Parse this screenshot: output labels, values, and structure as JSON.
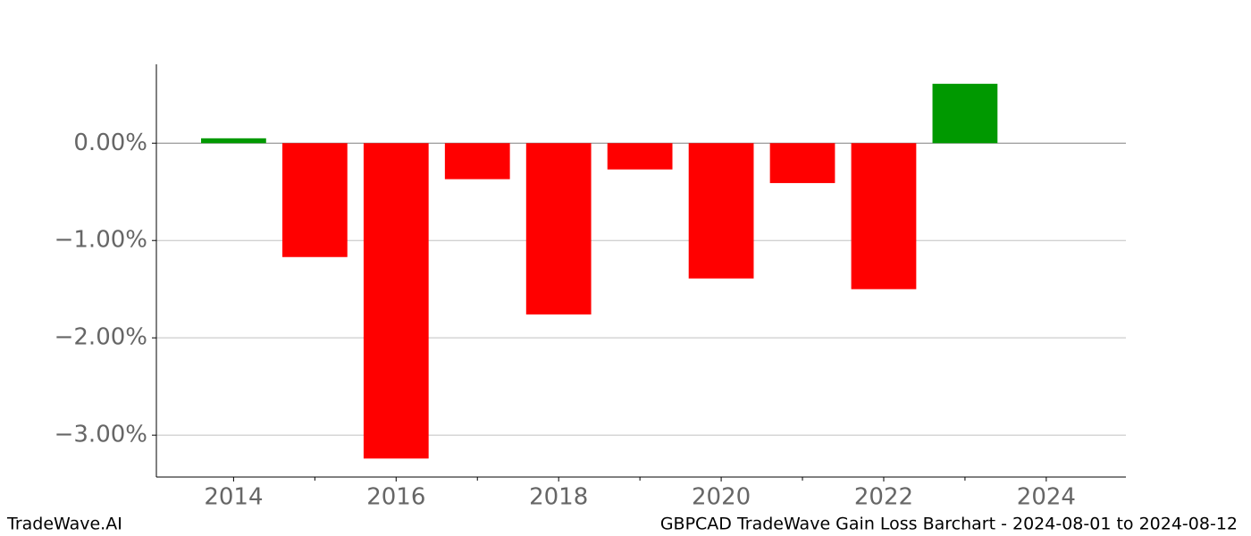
{
  "chart_data": {
    "type": "bar",
    "title": "GBPCAD TradeWave Gain Loss Barchart - 2024-08-01 to 2024-08-12",
    "source": "TradeWave.AI",
    "x": [
      2014,
      2015,
      2016,
      2017,
      2018,
      2019,
      2020,
      2021,
      2022,
      2023
    ],
    "values": [
      0.05,
      -1.17,
      -3.24,
      -0.37,
      -1.76,
      -0.27,
      -1.39,
      -0.41,
      -1.5,
      0.61
    ],
    "positive_color": "#009900",
    "negative_color": "#ff0000",
    "xlim": [
      2013.05,
      2024.98
    ],
    "xticks": [
      2014,
      2016,
      2018,
      2020,
      2022,
      2024
    ],
    "xminorticks": [
      2015,
      2017,
      2019,
      2021,
      2023
    ],
    "ylim": [
      -3.43,
      0.81
    ],
    "yticks": [
      {
        "value": 0,
        "label": "0.00%"
      },
      {
        "value": -1,
        "label": "−1.00%"
      },
      {
        "value": -2,
        "label": "−2.00%"
      },
      {
        "value": -3,
        "label": "−3.00%"
      }
    ],
    "grid": true
  }
}
